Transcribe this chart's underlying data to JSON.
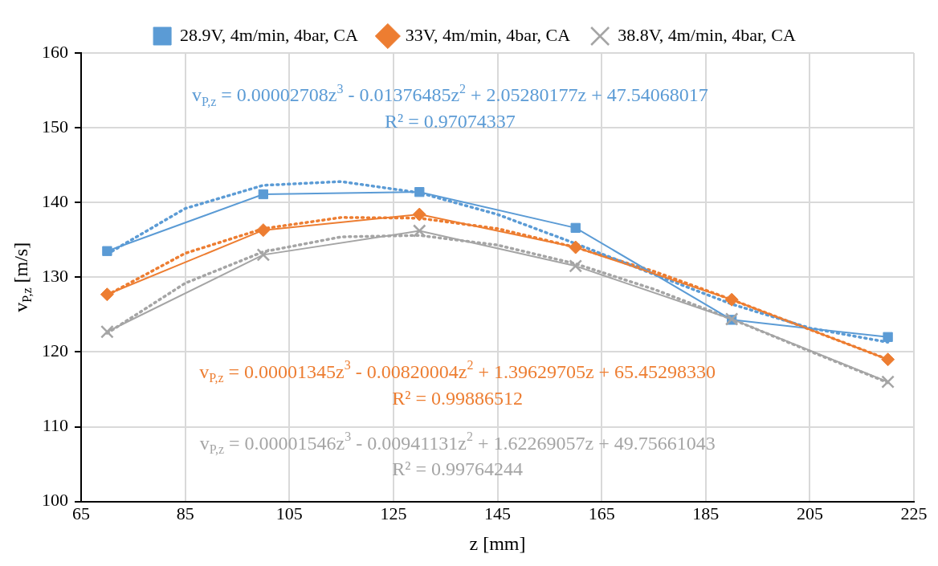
{
  "chart_data": {
    "type": "line",
    "xlabel": "z [mm]",
    "ylabel": "v$_{P,z}$ [m/s]",
    "x": [
      70,
      100,
      130,
      160,
      190,
      220
    ],
    "series": [
      {
        "name": "28.9V, 4m/min, 4bar, CA",
        "color": "#5b9bd5",
        "marker": "square",
        "values": [
          133.5,
          141.1,
          141.4,
          136.6,
          124.3,
          122.0
        ]
      },
      {
        "name": "33V, 4m/min, 4bar, CA",
        "color": "#ed7d31",
        "marker": "diamond",
        "values": [
          127.7,
          136.3,
          138.4,
          134.0,
          127.0,
          119.0
        ]
      },
      {
        "name": "38.8V, 4m/min, 4bar, CA",
        "color": "#a5a5a5",
        "marker": "cross",
        "values": [
          122.7,
          133.0,
          136.2,
          131.5,
          124.4,
          116.0
        ]
      },
      {
        "type": "line",
        "color": "#5b9bd5",
        "marker": "none",
        "line_style": "dotted",
        "x": [
          70,
          85,
          100,
          115,
          130,
          145,
          160,
          175,
          190,
          205,
          220
        ],
        "values": [
          133.1,
          139.2,
          142.3,
          142.8,
          141.3,
          138.4,
          134.5,
          130.4,
          126.4,
          123.2,
          121.3
        ]
      },
      {
        "type": "line",
        "color": "#ed7d31",
        "marker": "none",
        "line_style": "dotted",
        "x": [
          70,
          85,
          100,
          115,
          130,
          145,
          160,
          175,
          190,
          205,
          220
        ],
        "values": [
          127.6,
          133.2,
          136.5,
          138.0,
          137.9,
          136.5,
          134.0,
          130.8,
          127.0,
          123.0,
          119.0
        ]
      },
      {
        "type": "line",
        "color": "#a5a5a5",
        "marker": "none",
        "line_style": "dotted",
        "x": [
          70,
          85,
          100,
          115,
          130,
          145,
          160,
          175,
          190,
          205,
          220
        ],
        "values": [
          122.5,
          129.2,
          133.4,
          135.4,
          135.6,
          134.3,
          131.8,
          128.4,
          124.4,
          120.1,
          115.9
        ]
      }
    ],
    "annotations": [
      "v$_{P,z}$ = 0.00002708z$^{3}$ - 0.01376485z$^{2}$ + 2.05280177z + 47.54068017",
      "R² = 0.97074337",
      "v$_{P,z}$ = 0.00001345z$^{3}$ - 0.00820004z$^{2}$ + 1.39629705z + 65.45298330",
      "R² = 0.99886512",
      "v$_{P,z}$ = 0.00001546z$^{3}$ - 0.00941131z$^{2}$ + 1.62269057z + 49.75661043",
      "R² = 0.99764244"
    ],
    "xlim": [
      65,
      225
    ],
    "xticks": [
      65,
      85,
      105,
      125,
      145,
      165,
      185,
      205,
      225
    ],
    "ylim": [
      100,
      160
    ],
    "yticks": [
      100,
      110,
      120,
      130,
      140,
      150,
      160
    ],
    "grid": true,
    "legend": "top"
  }
}
